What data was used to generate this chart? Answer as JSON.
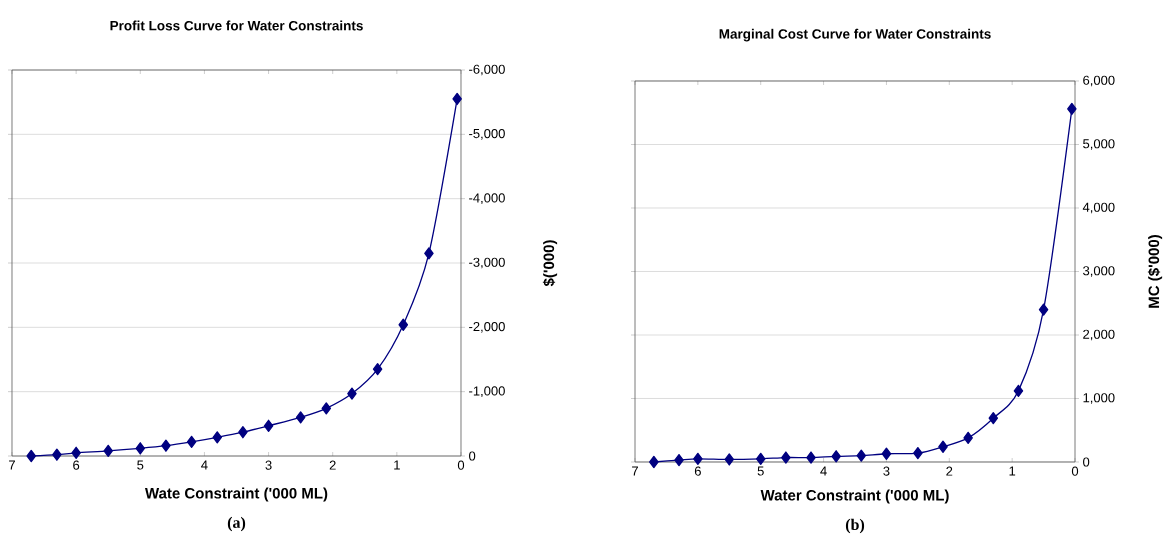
{
  "chart_data": [
    {
      "type": "line",
      "title": "Profit Loss Curve for Water Constraints",
      "xlabel": "Wate Constraint ('000 ML)",
      "ylabel": "$('000)",
      "annotations": [
        "(a)"
      ],
      "x": [
        6.7,
        6.3,
        6.0,
        5.5,
        5.0,
        4.6,
        4.2,
        3.8,
        3.4,
        3.0,
        2.5,
        2.1,
        1.7,
        1.3,
        0.9,
        0.5,
        0.06
      ],
      "values": [
        0,
        -20,
        -50,
        -80,
        -120,
        -160,
        -220,
        -290,
        -370,
        -470,
        -600,
        -740,
        -970,
        -1350,
        -2040,
        -3150,
        -5550
      ],
      "color": "#000080",
      "xlim": [
        7,
        0
      ],
      "ylim": [
        0,
        -6000
      ],
      "xticks": [
        7,
        6,
        5,
        4,
        3,
        2,
        1,
        0
      ],
      "yticks": [
        0,
        {
          "value": -1000,
          "label": "-1,000"
        },
        {
          "value": -2000,
          "label": "-2,000"
        },
        {
          "value": -3000,
          "label": "-3,000"
        },
        {
          "value": -4000,
          "label": "-4,000"
        },
        {
          "value": -5000,
          "label": "-5,000"
        },
        {
          "value": -6000,
          "label": "-6,000"
        }
      ],
      "grid": "y",
      "marker": "diamond"
    },
    {
      "type": "line",
      "title": "Marginal Cost Curve for Water Constraints",
      "xlabel": "Water Constraint ('000 ML)",
      "ylabel": "MC ($'000)",
      "annotations": [
        "(b)"
      ],
      "x": [
        6.7,
        6.3,
        6.0,
        5.5,
        5.0,
        4.6,
        4.2,
        3.8,
        3.4,
        3.0,
        2.5,
        2.1,
        1.7,
        1.3,
        0.9,
        0.5,
        0.05
      ],
      "values": [
        0,
        30,
        50,
        40,
        50,
        70,
        70,
        90,
        100,
        130,
        140,
        240,
        380,
        690,
        1120,
        2400,
        5560
      ],
      "color": "#000080",
      "xlim": [
        7,
        0
      ],
      "ylim": [
        0,
        6000
      ],
      "xticks": [
        7,
        6,
        5,
        4,
        3,
        2,
        1,
        0
      ],
      "yticks": [
        0,
        {
          "value": 1000,
          "label": "1,000"
        },
        {
          "value": 2000,
          "label": "2,000"
        },
        {
          "value": 3000,
          "label": "3,000"
        },
        {
          "value": 4000,
          "label": "4,000"
        },
        {
          "value": 5000,
          "label": "5,000"
        },
        {
          "value": 6000,
          "label": "6,000"
        }
      ],
      "grid": "y",
      "marker": "diamond"
    }
  ]
}
